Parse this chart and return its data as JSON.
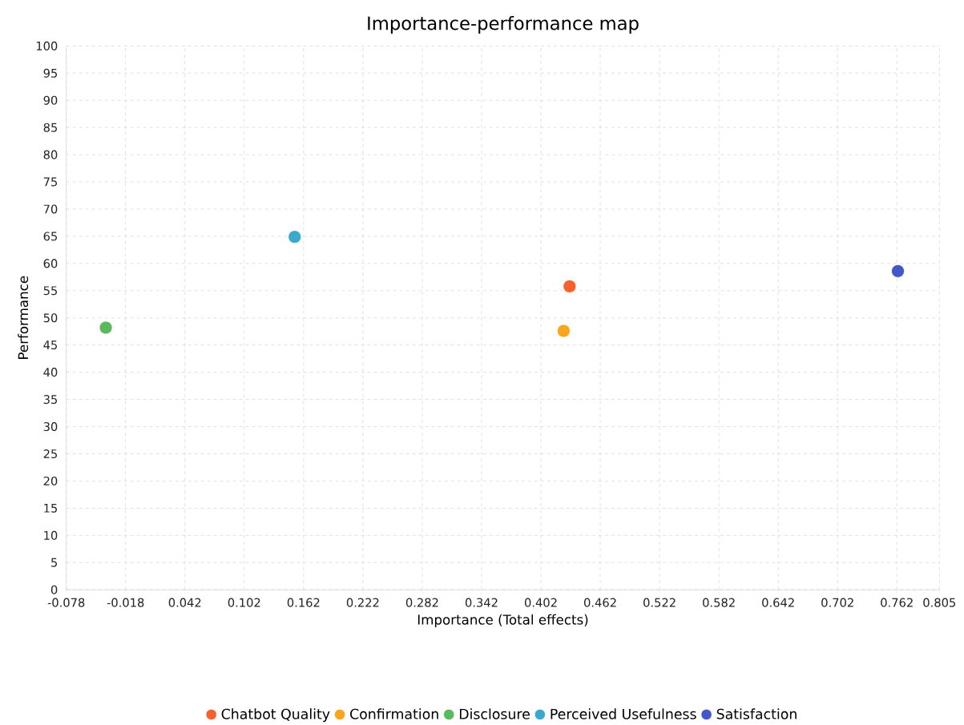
{
  "chart_data": {
    "type": "scatter",
    "title": "Importance-performance map",
    "xlabel": "Importance (Total effects)",
    "ylabel": "Performance",
    "series": [
      {
        "name": "Chatbot Quality",
        "color": "#f5622f",
        "x": [
          0.431
        ],
        "values": [
          55.8
        ]
      },
      {
        "name": "Confirmation",
        "color": "#f9a61d",
        "x": [
          0.425
        ],
        "values": [
          47.6
        ]
      },
      {
        "name": "Disclosure",
        "color": "#5cb85c",
        "x": [
          -0.038
        ],
        "values": [
          48.2
        ]
      },
      {
        "name": "Perceived Usefulness",
        "color": "#3ba9cc",
        "x": [
          0.153
        ],
        "values": [
          64.9
        ]
      },
      {
        "name": "Satisfaction",
        "color": "#4357c9",
        "x": [
          0.763
        ],
        "values": [
          58.6
        ]
      }
    ],
    "xlim": [
      -0.078,
      0.805
    ],
    "xticks": [
      -0.078,
      -0.018,
      0.042,
      0.102,
      0.162,
      0.222,
      0.282,
      0.342,
      0.402,
      0.462,
      0.522,
      0.582,
      0.642,
      0.702,
      0.762,
      0.805
    ],
    "ylim": [
      0,
      100
    ],
    "yticks": [
      0,
      5,
      10,
      15,
      20,
      25,
      30,
      35,
      40,
      45,
      50,
      55,
      60,
      65,
      70,
      75,
      80,
      85,
      90,
      95,
      100
    ],
    "grid": true,
    "legend": "bottom"
  }
}
